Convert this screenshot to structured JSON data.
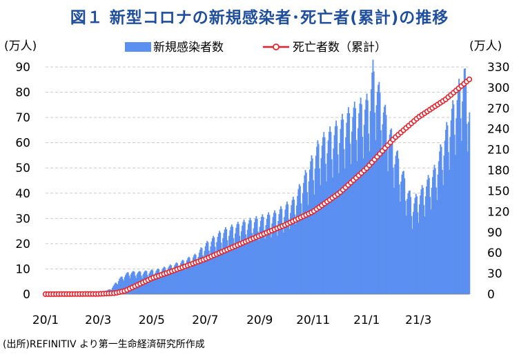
{
  "title": "図１ 新型コロナの新規感染者･死亡者(累計)の推移",
  "source": "(出所)REFINITIV より第一生命経済研究所作成",
  "colors": {
    "bars": "#5b8ff0",
    "line": "#e8202a",
    "marker_fill": "#ffffff",
    "title": "#1f4e9e"
  },
  "chart_data": {
    "type": "bar+line",
    "title": "図１ 新型コロナの新規感染者･死亡者(累計)の推移",
    "y_left_unit": "(万人)",
    "y_right_unit": "(万人)",
    "y_left_range": [
      0,
      90
    ],
    "y_left_ticks": [
      0,
      10,
      20,
      30,
      40,
      50,
      60,
      70,
      80,
      90
    ],
    "y_right_range": [
      0,
      330
    ],
    "y_right_ticks": [
      0,
      30,
      60,
      90,
      120,
      150,
      180,
      210,
      240,
      270,
      300,
      330
    ],
    "x_range": [
      "2020-01-01",
      "2021-04-28"
    ],
    "x_ticks": [
      "20/1",
      "20/3",
      "20/5",
      "20/7",
      "20/9",
      "20/11",
      "21/1",
      "21/3"
    ],
    "grid": "horizontal dashed",
    "legend_position": "top",
    "series": [
      {
        "name": "新規感染者数",
        "type": "bar",
        "axis": "left",
        "weekly_pattern": "daily values dip on weekends",
        "points": [
          [
            "2020-01-01",
            0
          ],
          [
            "2020-02-15",
            0
          ],
          [
            "2020-03-01",
            0.2
          ],
          [
            "2020-03-15",
            2
          ],
          [
            "2020-03-25",
            6
          ],
          [
            "2020-04-05",
            8.5
          ],
          [
            "2020-04-20",
            8.5
          ],
          [
            "2020-05-10",
            9.5
          ],
          [
            "2020-06-01",
            12
          ],
          [
            "2020-06-20",
            15
          ],
          [
            "2020-07-01",
            19
          ],
          [
            "2020-07-20",
            24
          ],
          [
            "2020-08-10",
            27
          ],
          [
            "2020-09-01",
            29
          ],
          [
            "2020-09-20",
            31
          ],
          [
            "2020-10-10",
            36
          ],
          [
            "2020-10-25",
            47
          ],
          [
            "2020-11-08",
            58
          ],
          [
            "2020-11-25",
            63
          ],
          [
            "2020-12-15",
            70
          ],
          [
            "2021-01-03",
            74
          ],
          [
            "2021-01-08",
            86
          ],
          [
            "2021-01-20",
            72
          ],
          [
            "2021-02-01",
            57
          ],
          [
            "2021-02-15",
            42
          ],
          [
            "2021-02-22",
            35
          ],
          [
            "2021-03-05",
            40
          ],
          [
            "2021-03-20",
            48
          ],
          [
            "2021-04-01",
            62
          ],
          [
            "2021-04-15",
            78
          ],
          [
            "2021-04-22",
            85
          ],
          [
            "2021-04-28",
            72
          ]
        ]
      },
      {
        "name": "死亡者数（累計）",
        "type": "line",
        "axis": "right",
        "points": [
          [
            "2020-01-01",
            0
          ],
          [
            "2020-03-01",
            0.3
          ],
          [
            "2020-03-20",
            1.5
          ],
          [
            "2020-04-01",
            5
          ],
          [
            "2020-05-01",
            23
          ],
          [
            "2020-06-01",
            37
          ],
          [
            "2020-07-01",
            51
          ],
          [
            "2020-08-01",
            68
          ],
          [
            "2020-09-01",
            85
          ],
          [
            "2020-10-01",
            101
          ],
          [
            "2020-11-01",
            120
          ],
          [
            "2020-12-01",
            147
          ],
          [
            "2021-01-01",
            183
          ],
          [
            "2021-02-01",
            226
          ],
          [
            "2021-03-01",
            257
          ],
          [
            "2021-04-01",
            283
          ],
          [
            "2021-04-28",
            312
          ]
        ]
      }
    ]
  }
}
